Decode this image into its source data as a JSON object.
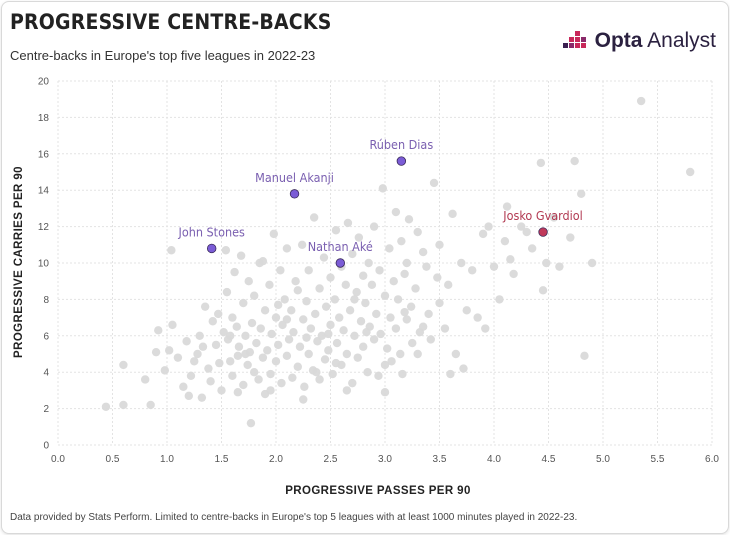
{
  "header": {
    "title": "PROGRESSIVE CENTRE-BACKS",
    "subtitle": "Centre-backs in Europe's top five leagues in 2022-23",
    "brand_bold": "Opta",
    "brand_light": " Analyst",
    "brand_color": "#2b2140",
    "brand_accent": "#c8285a"
  },
  "footer": {
    "note": "Data provided by Stats Perform. Limited to centre-backs in Europe's top 5 leagues with at least 1000 minutes played in 2022-23."
  },
  "colors": {
    "background_points": "#d9d9d9",
    "highlight_purple": "#7b5cd6",
    "highlight_red": "#c0395a",
    "label_purple": "#7a5fb0",
    "label_red": "#b23a52",
    "grid": "#e3e3e3"
  },
  "chart_data": {
    "type": "scatter",
    "title": "PROGRESSIVE CENTRE-BACKS",
    "subtitle": "Centre-backs in Europe's top five leagues in 2022-23",
    "xlabel": "PROGRESSIVE PASSES PER 90",
    "ylabel": "PROGRESSIVE CARRIES PER 90",
    "xlim": [
      0,
      6
    ],
    "ylim": [
      0,
      20
    ],
    "xticks": [
      "0.0",
      "0.5",
      "1.0",
      "1.5",
      "2.0",
      "2.5",
      "3.0",
      "3.5",
      "4.0",
      "4.5",
      "5.0",
      "5.5",
      "6.0"
    ],
    "yticks": [
      "0",
      "2",
      "4",
      "6",
      "8",
      "10",
      "12",
      "14",
      "16",
      "18",
      "20"
    ],
    "grid": "dashed",
    "highlighted": [
      {
        "name": "Rúben Dias",
        "x": 3.15,
        "y": 15.6,
        "color": "purple"
      },
      {
        "name": "Manuel Akanji",
        "x": 2.17,
        "y": 13.8,
        "color": "purple"
      },
      {
        "name": "John Stones",
        "x": 1.41,
        "y": 10.8,
        "color": "purple"
      },
      {
        "name": "Nathan Aké",
        "x": 2.59,
        "y": 10.0,
        "color": "purple"
      },
      {
        "name": "Josko Gvardiol",
        "x": 4.45,
        "y": 11.7,
        "color": "red"
      }
    ],
    "points": [
      [
        0.44,
        2.1
      ],
      [
        0.6,
        2.2
      ],
      [
        0.6,
        4.4
      ],
      [
        0.8,
        3.6
      ],
      [
        0.85,
        2.2
      ],
      [
        0.9,
        5.1
      ],
      [
        0.92,
        6.3
      ],
      [
        0.98,
        4.1
      ],
      [
        1.02,
        5.2
      ],
      [
        1.04,
        10.7
      ],
      [
        1.05,
        6.6
      ],
      [
        1.1,
        4.8
      ],
      [
        1.15,
        3.2
      ],
      [
        1.18,
        5.7
      ],
      [
        1.2,
        2.7
      ],
      [
        1.22,
        3.8
      ],
      [
        1.25,
        4.6
      ],
      [
        1.28,
        5.0
      ],
      [
        1.3,
        6.0
      ],
      [
        1.32,
        2.6
      ],
      [
        1.33,
        5.4
      ],
      [
        1.35,
        7.6
      ],
      [
        1.38,
        4.2
      ],
      [
        1.4,
        3.5
      ],
      [
        1.42,
        6.8
      ],
      [
        1.45,
        5.5
      ],
      [
        1.47,
        7.2
      ],
      [
        1.48,
        4.5
      ],
      [
        1.5,
        3.0
      ],
      [
        1.52,
        6.2
      ],
      [
        1.54,
        10.7
      ],
      [
        1.55,
        8.4
      ],
      [
        1.56,
        5.8
      ],
      [
        1.58,
        4.6
      ],
      [
        1.6,
        3.8
      ],
      [
        1.6,
        7.0
      ],
      [
        1.62,
        9.5
      ],
      [
        1.64,
        6.5
      ],
      [
        1.65,
        4.9
      ],
      [
        1.66,
        5.4
      ],
      [
        1.68,
        10.4
      ],
      [
        1.7,
        3.3
      ],
      [
        1.7,
        7.8
      ],
      [
        1.72,
        6.0
      ],
      [
        1.74,
        4.4
      ],
      [
        1.75,
        9.0
      ],
      [
        1.76,
        5.1
      ],
      [
        1.77,
        1.2
      ],
      [
        1.78,
        6.7
      ],
      [
        1.8,
        4.0
      ],
      [
        1.8,
        8.2
      ],
      [
        1.82,
        5.6
      ],
      [
        1.84,
        3.6
      ],
      [
        1.85,
        10.0
      ],
      [
        1.86,
        6.4
      ],
      [
        1.88,
        4.8
      ],
      [
        1.9,
        7.4
      ],
      [
        1.9,
        2.8
      ],
      [
        1.92,
        5.2
      ],
      [
        1.94,
        8.8
      ],
      [
        1.95,
        3.9
      ],
      [
        1.96,
        6.1
      ],
      [
        1.98,
        11.6
      ],
      [
        2.0,
        4.6
      ],
      [
        2.0,
        7.0
      ],
      [
        2.02,
        5.5
      ],
      [
        2.04,
        9.6
      ],
      [
        2.05,
        3.4
      ],
      [
        2.06,
        6.6
      ],
      [
        2.08,
        8.0
      ],
      [
        2.1,
        4.9
      ],
      [
        2.1,
        10.8
      ],
      [
        2.12,
        5.8
      ],
      [
        2.14,
        7.4
      ],
      [
        2.15,
        3.7
      ],
      [
        2.16,
        6.2
      ],
      [
        2.18,
        9.0
      ],
      [
        2.2,
        4.3
      ],
      [
        2.2,
        8.5
      ],
      [
        2.22,
        5.4
      ],
      [
        2.24,
        11.0
      ],
      [
        2.25,
        6.9
      ],
      [
        2.26,
        3.2
      ],
      [
        2.28,
        7.9
      ],
      [
        2.3,
        5.0
      ],
      [
        2.3,
        9.6
      ],
      [
        2.32,
        6.4
      ],
      [
        2.34,
        4.1
      ],
      [
        2.35,
        12.5
      ],
      [
        2.36,
        7.2
      ],
      [
        2.38,
        5.7
      ],
      [
        2.4,
        8.6
      ],
      [
        2.4,
        3.6
      ],
      [
        2.42,
        6.0
      ],
      [
        2.44,
        10.3
      ],
      [
        2.45,
        4.7
      ],
      [
        2.46,
        7.6
      ],
      [
        2.48,
        5.2
      ],
      [
        2.5,
        9.2
      ],
      [
        2.5,
        6.6
      ],
      [
        2.52,
        3.9
      ],
      [
        2.54,
        8.0
      ],
      [
        2.55,
        11.8
      ],
      [
        2.56,
        5.6
      ],
      [
        2.58,
        7.0
      ],
      [
        2.6,
        4.4
      ],
      [
        2.6,
        9.8
      ],
      [
        2.62,
        6.3
      ],
      [
        2.64,
        8.8
      ],
      [
        2.65,
        5.0
      ],
      [
        2.66,
        12.2
      ],
      [
        2.68,
        7.4
      ],
      [
        2.7,
        3.4
      ],
      [
        2.7,
        10.5
      ],
      [
        2.72,
        6.0
      ],
      [
        2.74,
        8.4
      ],
      [
        2.75,
        4.8
      ],
      [
        2.76,
        11.4
      ],
      [
        2.78,
        6.8
      ],
      [
        2.8,
        9.3
      ],
      [
        2.8,
        5.4
      ],
      [
        2.82,
        7.8
      ],
      [
        2.84,
        4.0
      ],
      [
        2.85,
        10.0
      ],
      [
        2.86,
        6.5
      ],
      [
        2.88,
        8.8
      ],
      [
        2.9,
        5.8
      ],
      [
        2.9,
        12.0
      ],
      [
        2.92,
        7.2
      ],
      [
        2.94,
        3.8
      ],
      [
        2.95,
        9.6
      ],
      [
        2.96,
        6.1
      ],
      [
        2.98,
        14.1
      ],
      [
        3.0,
        8.2
      ],
      [
        3.0,
        2.9
      ],
      [
        3.02,
        5.3
      ],
      [
        3.04,
        10.8
      ],
      [
        3.05,
        7.0
      ],
      [
        3.06,
        4.6
      ],
      [
        3.08,
        9.0
      ],
      [
        3.1,
        6.4
      ],
      [
        3.1,
        12.8
      ],
      [
        3.12,
        8.0
      ],
      [
        3.14,
        5.0
      ],
      [
        3.15,
        11.2
      ],
      [
        3.16,
        3.9
      ],
      [
        3.18,
        9.4
      ],
      [
        3.2,
        6.9
      ],
      [
        3.2,
        10.0
      ],
      [
        3.22,
        12.4
      ],
      [
        3.24,
        7.6
      ],
      [
        3.25,
        5.6
      ],
      [
        3.28,
        8.6
      ],
      [
        3.3,
        11.7
      ],
      [
        3.32,
        6.2
      ],
      [
        3.35,
        10.6
      ],
      [
        3.38,
        9.8
      ],
      [
        3.4,
        7.2
      ],
      [
        3.42,
        5.8
      ],
      [
        3.45,
        14.4
      ],
      [
        3.48,
        9.2
      ],
      [
        3.5,
        11.0
      ],
      [
        3.5,
        7.8
      ],
      [
        3.55,
        6.4
      ],
      [
        3.58,
        8.8
      ],
      [
        3.62,
        12.7
      ],
      [
        3.65,
        5.0
      ],
      [
        3.7,
        10.0
      ],
      [
        3.72,
        4.2
      ],
      [
        3.75,
        7.4
      ],
      [
        3.8,
        9.6
      ],
      [
        3.85,
        7.0
      ],
      [
        3.9,
        11.6
      ],
      [
        3.92,
        6.4
      ],
      [
        3.95,
        12.0
      ],
      [
        4.0,
        9.8
      ],
      [
        4.05,
        8.0
      ],
      [
        4.1,
        11.2
      ],
      [
        4.12,
        13.1
      ],
      [
        4.15,
        10.2
      ],
      [
        4.18,
        9.4
      ],
      [
        4.25,
        12.0
      ],
      [
        4.3,
        11.7
      ],
      [
        4.35,
        10.8
      ],
      [
        4.43,
        15.5
      ],
      [
        4.45,
        8.5
      ],
      [
        4.48,
        10.0
      ],
      [
        4.55,
        12.5
      ],
      [
        4.6,
        9.8
      ],
      [
        4.7,
        11.4
      ],
      [
        4.74,
        15.6
      ],
      [
        4.8,
        13.8
      ],
      [
        4.83,
        4.9
      ],
      [
        4.9,
        10.0
      ],
      [
        5.35,
        18.9
      ],
      [
        5.8,
        15.0
      ],
      [
        2.72,
        8.0
      ],
      [
        2.02,
        7.7
      ],
      [
        1.88,
        10.1
      ],
      [
        2.55,
        4.5
      ],
      [
        3.35,
        6.5
      ],
      [
        3.6,
        3.9
      ],
      [
        2.25,
        2.5
      ],
      [
        1.65,
        2.9
      ],
      [
        1.95,
        3.0
      ],
      [
        2.65,
        3.0
      ],
      [
        3.0,
        4.4
      ],
      [
        3.3,
        5.0
      ],
      [
        2.1,
        6.9
      ],
      [
        2.28,
        5.9
      ],
      [
        2.48,
        6.1
      ],
      [
        2.37,
        4.0
      ],
      [
        1.72,
        5.0
      ],
      [
        1.58,
        6.0
      ],
      [
        2.83,
        6.2
      ],
      [
        3.18,
        7.3
      ]
    ]
  }
}
